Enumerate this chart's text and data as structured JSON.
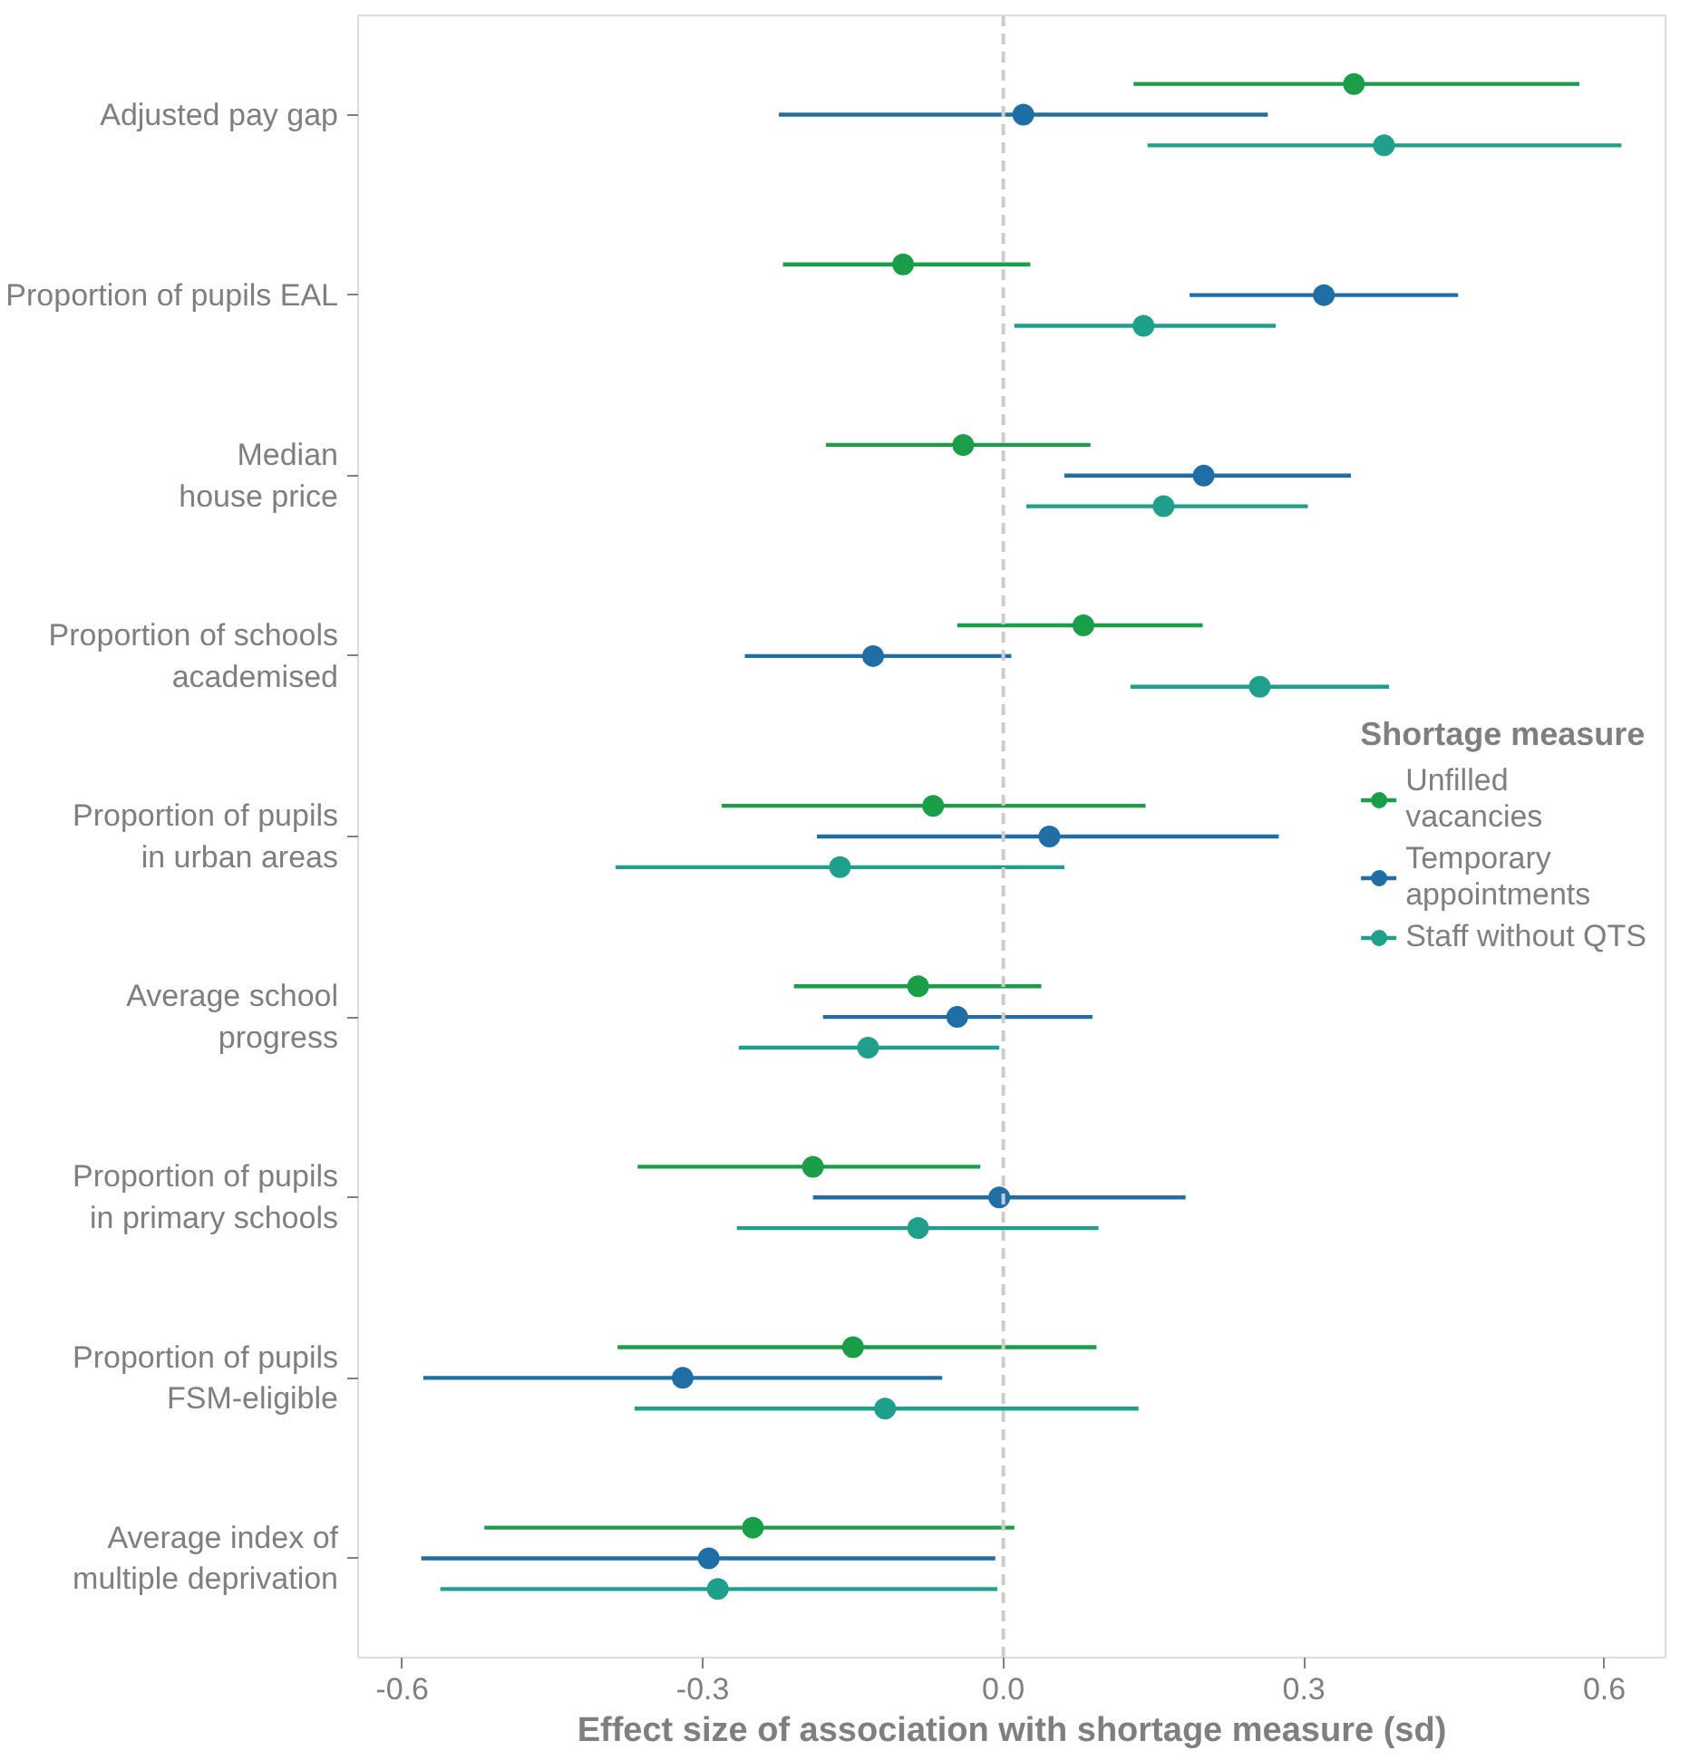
{
  "chart_data": {
    "type": "scatter",
    "orientation": "horizontal",
    "xlabel": "Effect size of association with shortage measure (sd)",
    "legend_title": "Shortage measure",
    "legend": "right",
    "grid": false,
    "marker": "circle",
    "categories": [
      "Adjusted pay gap",
      "Proportion of pupils EAL",
      "Median\nhouse price",
      "Proportion of schools\nacademised",
      "Proportion of pupils\nin urban areas",
      "Average school\nprogress",
      "Proportion of pupils\nin primary schools",
      "Proportion of pupils\nFSM-eligible",
      "Average index of\nmultiple deprivation"
    ],
    "xlim": [
      -0.644,
      0.661
    ],
    "xticks": [
      {
        "value": -0.6,
        "label": "-0.6"
      },
      {
        "value": -0.3,
        "label": "-0.3"
      },
      {
        "value": 0,
        "label": "0.0"
      },
      {
        "value": 0.3,
        "label": "0.3"
      },
      {
        "value": 0.6,
        "label": "0.6"
      }
    ],
    "ref_lines": [
      {
        "axis": "x",
        "value": 0,
        "label": null,
        "color": "#cccccc",
        "line_style": "dashed"
      }
    ],
    "series": [
      {
        "name": "Unfilled\nvacancies",
        "color": "#1a9e48",
        "values": [
          0.35,
          -0.1,
          -0.04,
          0.08,
          -0.07,
          -0.085,
          -0.19,
          -0.15,
          -0.25
        ],
        "errors": [
          [
            0.13,
            0.575
          ],
          [
            -0.22,
            0.027
          ],
          [
            -0.177,
            0.087
          ],
          [
            -0.046,
            0.199
          ],
          [
            -0.281,
            0.142
          ],
          [
            -0.209,
            0.038
          ],
          [
            -0.365,
            -0.023
          ],
          [
            -0.385,
            0.093
          ],
          [
            -0.518,
            0.011
          ]
        ]
      },
      {
        "name": "Temporary\nappointments",
        "color": "#1f6fa6",
        "values": [
          0.02,
          0.32,
          0.2,
          -0.13,
          0.046,
          -0.046,
          -0.004,
          -0.32,
          -0.294
        ],
        "errors": [
          [
            -0.224,
            0.264
          ],
          [
            0.186,
            0.454
          ],
          [
            0.061,
            0.347
          ],
          [
            -0.258,
            0.008
          ],
          [
            -0.186,
            0.275
          ],
          [
            -0.18,
            0.089
          ],
          [
            -0.19,
            0.182
          ],
          [
            -0.579,
            -0.061
          ],
          [
            -0.581,
            -0.008
          ]
        ]
      },
      {
        "name": "Staff without QTS",
        "color": "#1fa08c",
        "values": [
          0.38,
          0.14,
          0.16,
          0.256,
          -0.163,
          -0.135,
          -0.085,
          -0.118,
          -0.285
        ],
        "errors": [
          [
            0.144,
            0.617
          ],
          [
            0.011,
            0.272
          ],
          [
            0.023,
            0.304
          ],
          [
            0.127,
            0.385
          ],
          [
            -0.387,
            0.061
          ],
          [
            -0.264,
            -0.004
          ],
          [
            -0.266,
            0.095
          ],
          [
            -0.368,
            0.135
          ],
          [
            -0.562,
            -0.006
          ]
        ]
      }
    ]
  }
}
